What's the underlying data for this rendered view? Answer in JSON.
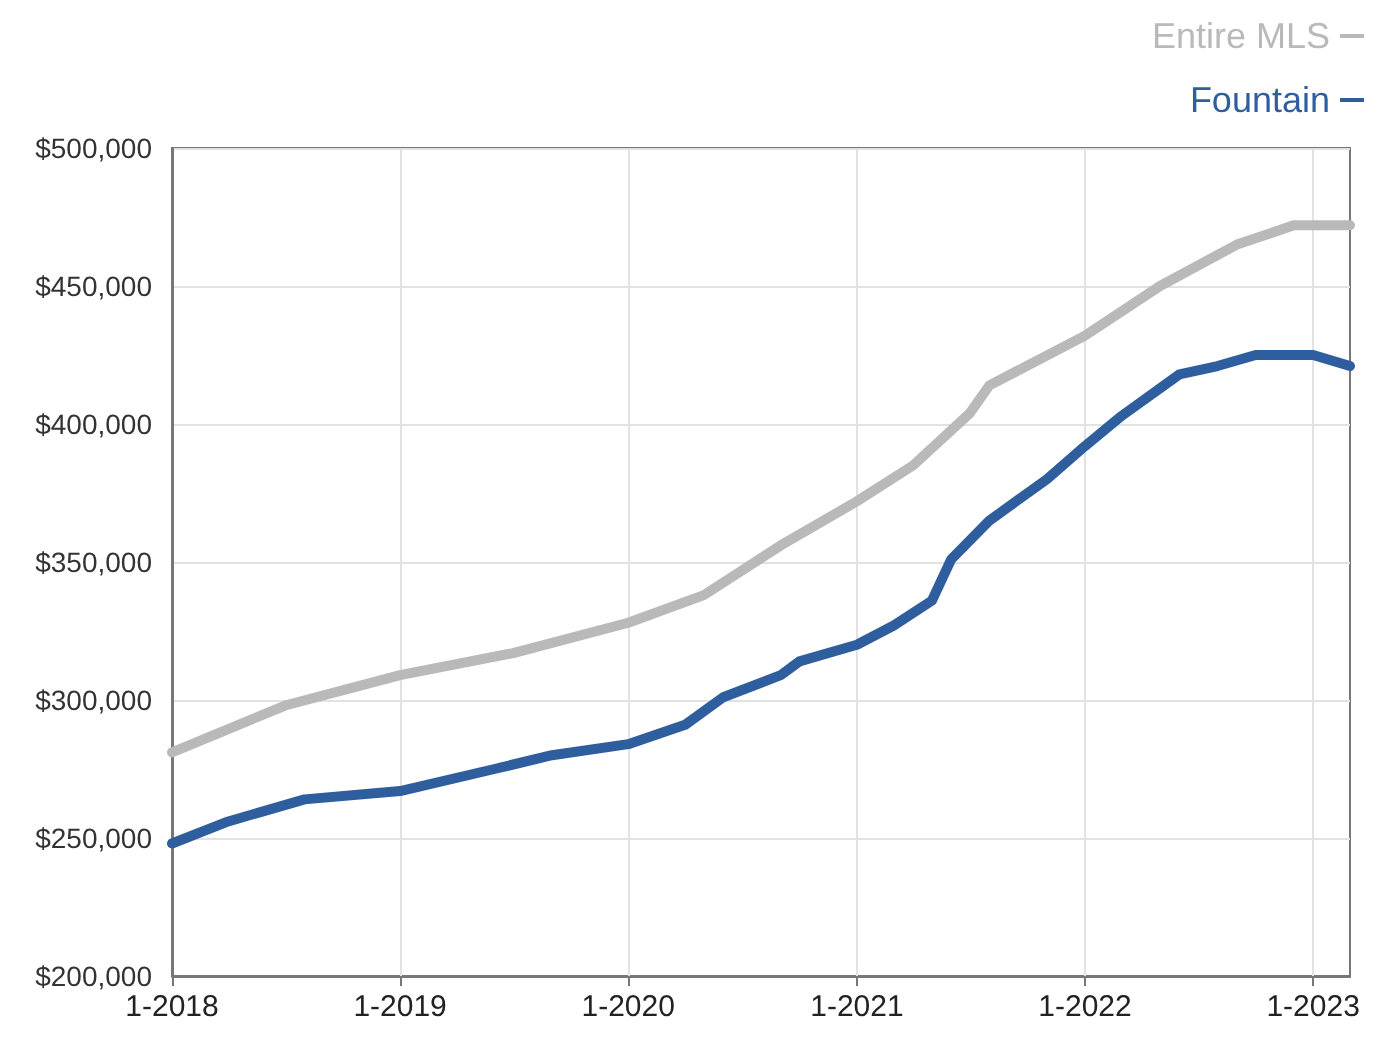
{
  "chart_data": {
    "type": "line",
    "xlim": [
      "2018-01",
      "2023-03"
    ],
    "xticks": [
      {
        "value": "2018-01",
        "label": "1-2018"
      },
      {
        "value": "2019-01",
        "label": "1-2019"
      },
      {
        "value": "2020-01",
        "label": "1-2020"
      },
      {
        "value": "2021-01",
        "label": "1-2021"
      },
      {
        "value": "2022-01",
        "label": "1-2022"
      },
      {
        "value": "2023-01",
        "label": "1-2023"
      }
    ],
    "ylim": [
      200000,
      500000
    ],
    "yticks": [
      {
        "value": 200000,
        "label": "$200,000"
      },
      {
        "value": 250000,
        "label": "$250,000"
      },
      {
        "value": 300000,
        "label": "$300,000"
      },
      {
        "value": 350000,
        "label": "$350,000"
      },
      {
        "value": 400000,
        "label": "$400,000"
      },
      {
        "value": 450000,
        "label": "$450,000"
      },
      {
        "value": 500000,
        "label": "$500,000"
      }
    ],
    "grid": true,
    "legend": "top right",
    "marker": "none",
    "line_style": "solid",
    "series": [
      {
        "name": "Entire MLS",
        "color": "#b9b9b9",
        "x": [
          "2018-01",
          "2018-07",
          "2019-01",
          "2019-07",
          "2020-01",
          "2020-05",
          "2020-09",
          "2021-01",
          "2021-04",
          "2021-07",
          "2021-08",
          "2022-01",
          "2022-05",
          "2022-09",
          "2022-12",
          "2023-03"
        ],
        "values": [
          281000,
          298000,
          309000,
          317000,
          328000,
          338000,
          356000,
          372000,
          385000,
          404000,
          414000,
          432000,
          450000,
          465000,
          472000,
          472000
        ]
      },
      {
        "name": "Fountain",
        "color": "#2f5e9e",
        "x": [
          "2018-01",
          "2018-04",
          "2018-08",
          "2019-01",
          "2019-06",
          "2019-09",
          "2020-01",
          "2020-04",
          "2020-06",
          "2020-09",
          "2020-10",
          "2021-01",
          "2021-03",
          "2021-05",
          "2021-06",
          "2021-08",
          "2021-11",
          "2022-01",
          "2022-03",
          "2022-06",
          "2022-08",
          "2022-10",
          "2023-01",
          "2023-03"
        ],
        "values": [
          248000,
          256000,
          264000,
          267000,
          275000,
          280000,
          284000,
          291000,
          301000,
          309000,
          314000,
          320000,
          327000,
          336000,
          351000,
          365000,
          380000,
          392000,
          403000,
          418000,
          421000,
          425000,
          425000,
          421000
        ]
      }
    ]
  }
}
